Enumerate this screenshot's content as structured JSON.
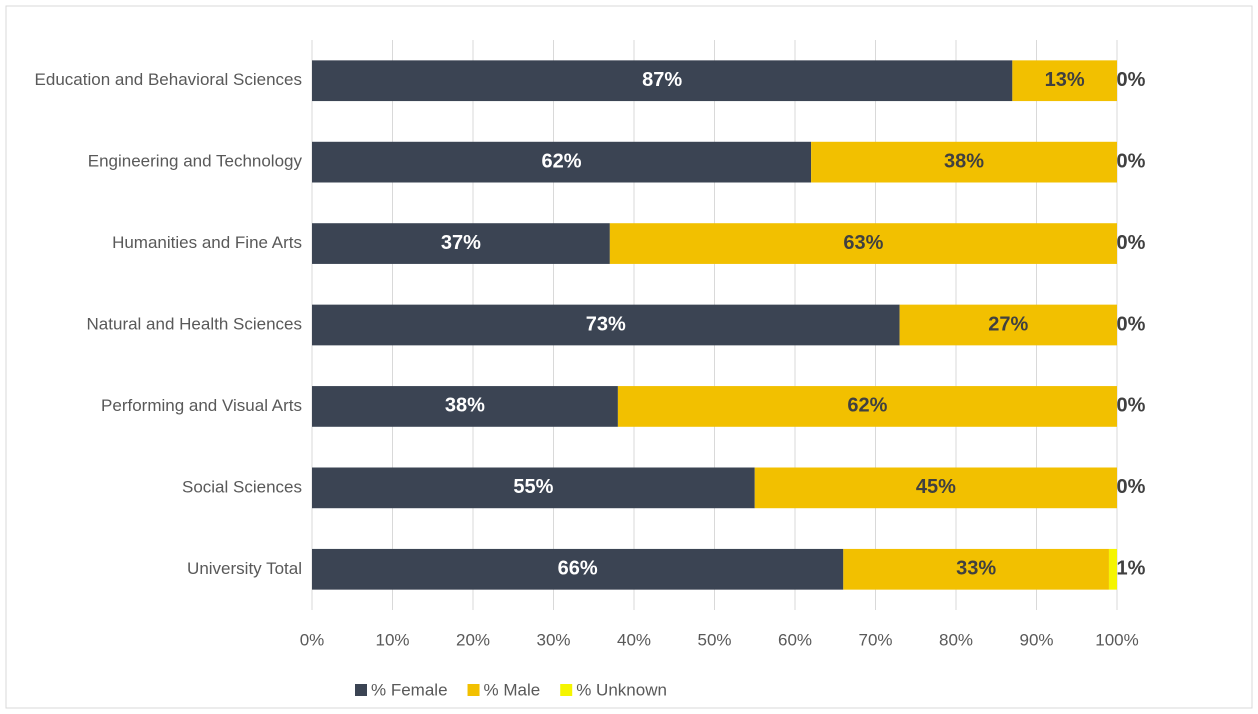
{
  "chart_data": {
    "type": "stacked-bar-horizontal",
    "categories": [
      "Education and Behavioral Sciences",
      "Engineering and Technology",
      "Humanities and Fine Arts",
      "Natural and Health Sciences",
      "Performing and Visual Arts",
      "Social Sciences",
      "University Total"
    ],
    "series": [
      {
        "name": "% Female",
        "color": "#3b4453",
        "values": [
          87,
          62,
          37,
          73,
          38,
          55,
          66
        ],
        "value_labels": [
          "87%",
          "62%",
          "37%",
          "73%",
          "38%",
          "55%",
          "66%"
        ]
      },
      {
        "name": "% Male",
        "color": "#f2c000",
        "values": [
          13,
          38,
          63,
          27,
          62,
          45,
          33
        ],
        "value_labels": [
          "13%",
          "38%",
          "63%",
          "27%",
          "62%",
          "45%",
          "33%"
        ]
      },
      {
        "name": "% Unknown",
        "color": "#f5f500",
        "values": [
          0,
          0,
          0,
          0,
          0,
          0,
          1
        ],
        "value_labels": [
          "0%",
          "0%",
          "0%",
          "0%",
          "0%",
          "0%",
          "1%"
        ]
      }
    ],
    "xlim": [
      0,
      100
    ],
    "xticks": [
      {
        "value": 0,
        "label": "0%"
      },
      {
        "value": 10,
        "label": "10%"
      },
      {
        "value": 20,
        "label": "20%"
      },
      {
        "value": 30,
        "label": "30%"
      },
      {
        "value": 40,
        "label": "40%"
      },
      {
        "value": 50,
        "label": "50%"
      },
      {
        "value": 60,
        "label": "60%"
      },
      {
        "value": 70,
        "label": "70%"
      },
      {
        "value": 80,
        "label": "80%"
      },
      {
        "value": 90,
        "label": "90%"
      },
      {
        "value": 100,
        "label": "100%"
      }
    ],
    "grid": true
  }
}
